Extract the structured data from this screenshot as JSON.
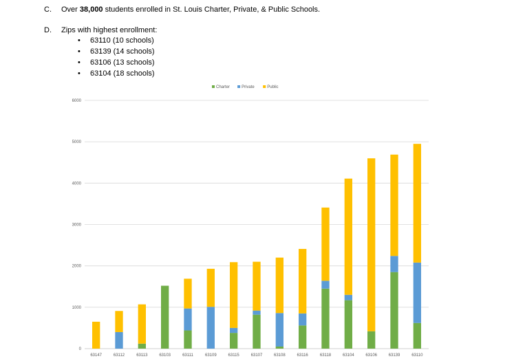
{
  "doc": {
    "items": [
      {
        "marker": "C.",
        "text_before": "Over ",
        "text_bold": "38,000",
        "text_after": " students enrolled in St. Louis Charter, Private, & Public Schools."
      },
      {
        "marker": "D.",
        "text": "Zips with highest enrollment:",
        "bullets": [
          "63110 (10 schools)",
          "63139 (14 schools)",
          "63106 (13 schools)",
          "63104 (18 schools)"
        ]
      }
    ]
  },
  "chart_data": {
    "type": "bar",
    "stacked": true,
    "title": "",
    "xlabel": "",
    "ylabel": "",
    "ylim": [
      0,
      6000
    ],
    "yticks": [
      0,
      1000,
      2000,
      3000,
      4000,
      5000,
      6000
    ],
    "grid": true,
    "legend_position": "top",
    "categories": [
      "63147",
      "63112",
      "63113",
      "63103",
      "63111",
      "63109",
      "63115",
      "63107",
      "63108",
      "63116",
      "63118",
      "63104",
      "63106",
      "63139",
      "63110"
    ],
    "series": [
      {
        "name": "Charter",
        "color": "#70ad47",
        "values": [
          0,
          0,
          120,
          1520,
          440,
          0,
          380,
          820,
          50,
          560,
          1450,
          1170,
          420,
          1850,
          620
        ]
      },
      {
        "name": "Private",
        "color": "#5b9bd5",
        "values": [
          0,
          400,
          0,
          0,
          530,
          1010,
          120,
          100,
          810,
          290,
          190,
          130,
          0,
          390,
          1460
        ]
      },
      {
        "name": "Public",
        "color": "#ffc000",
        "values": [
          650,
          510,
          950,
          0,
          720,
          920,
          1590,
          1180,
          1340,
          1560,
          1770,
          2810,
          4180,
          2450,
          2870
        ]
      }
    ]
  }
}
